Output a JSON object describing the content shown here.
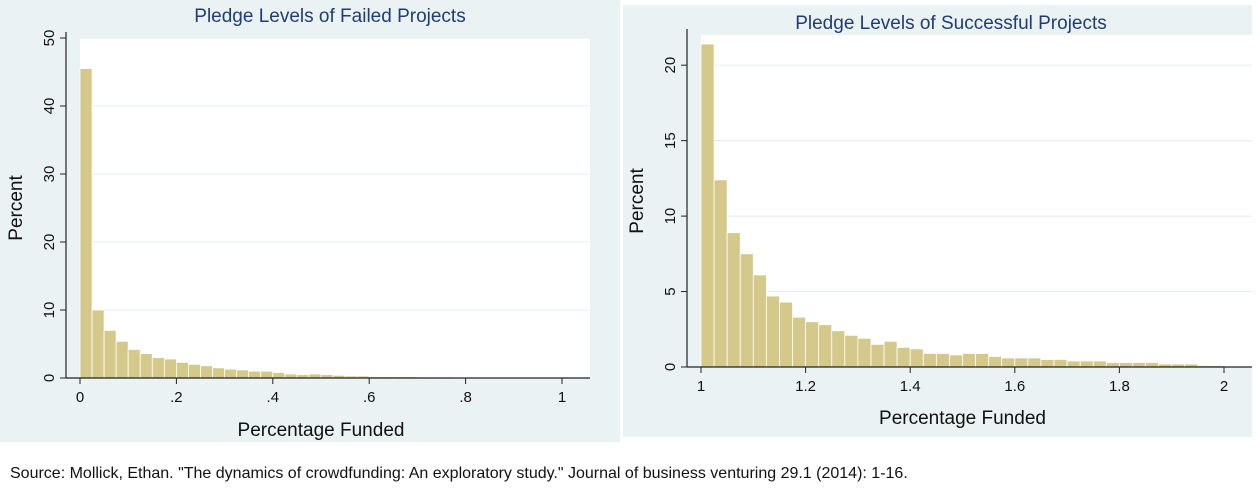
{
  "chart_data": [
    {
      "type": "bar",
      "title": "Pledge Levels of Failed Projects",
      "xlabel": "Percentage Funded",
      "ylabel": "Percent",
      "xlim": [
        0,
        1
      ],
      "ylim": [
        0,
        50
      ],
      "x_ticks": [
        0,
        0.2,
        0.4,
        0.6,
        0.8,
        1
      ],
      "x_tick_labels": [
        "0",
        ".2",
        ".4",
        ".6",
        ".8",
        "1"
      ],
      "y_ticks": [
        0,
        10,
        20,
        30,
        40,
        50
      ],
      "y_tick_labels": [
        "0",
        "10",
        "20",
        "30",
        "40",
        "50"
      ],
      "grid": true,
      "bar_color": "#d4c98a",
      "bin_width": 0.025,
      "bin_starts": [
        0,
        0.025,
        0.05,
        0.075,
        0.1,
        0.125,
        0.15,
        0.175,
        0.2,
        0.225,
        0.25,
        0.275,
        0.3,
        0.325,
        0.35,
        0.375,
        0.4,
        0.425,
        0.45,
        0.475,
        0.5,
        0.525,
        0.55,
        0.575,
        0.6,
        0.625,
        0.65,
        0.675,
        0.7,
        0.725,
        0.75,
        0.775,
        0.8,
        0.825,
        0.85,
        0.875,
        0.9,
        0.925,
        0.95,
        0.975
      ],
      "values": [
        45.5,
        10.0,
        7.0,
        5.4,
        4.2,
        3.6,
        3.0,
        2.8,
        2.3,
        2.0,
        1.8,
        1.5,
        1.3,
        1.2,
        1.0,
        1.0,
        0.8,
        0.6,
        0.5,
        0.6,
        0.5,
        0.4,
        0.3,
        0.3,
        0.2,
        0.2,
        0.2,
        0.2,
        0.15,
        0.15,
        0.15,
        0.1,
        0.1,
        0.05,
        0.05,
        0.05,
        0.05,
        0.05,
        0.05,
        0.05
      ]
    },
    {
      "type": "bar",
      "title": "Pledge Levels of Successful Projects",
      "xlabel": "Percentage Funded",
      "ylabel": "Percent",
      "xlim": [
        1,
        2
      ],
      "ylim": [
        0,
        22
      ],
      "x_ticks": [
        1,
        1.2,
        1.4,
        1.6,
        1.8,
        2
      ],
      "x_tick_labels": [
        "1",
        "1.2",
        "1.4",
        "1.6",
        "1.8",
        "2"
      ],
      "y_ticks": [
        0,
        5,
        10,
        15,
        20
      ],
      "y_tick_labels": [
        "0",
        "5",
        "10",
        "15",
        "20"
      ],
      "grid": true,
      "bar_color": "#d4c98a",
      "bin_width": 0.025,
      "bin_starts": [
        1,
        1.025,
        1.05,
        1.075,
        1.1,
        1.125,
        1.15,
        1.175,
        1.2,
        1.225,
        1.25,
        1.275,
        1.3,
        1.325,
        1.35,
        1.375,
        1.4,
        1.425,
        1.45,
        1.475,
        1.5,
        1.525,
        1.55,
        1.575,
        1.6,
        1.625,
        1.65,
        1.675,
        1.7,
        1.725,
        1.75,
        1.775,
        1.8,
        1.825,
        1.85,
        1.875,
        1.9,
        1.925,
        1.95,
        1.975
      ],
      "values": [
        21.4,
        12.4,
        8.9,
        7.5,
        6.1,
        4.7,
        4.3,
        3.3,
        3.0,
        2.8,
        2.4,
        2.1,
        1.9,
        1.5,
        1.7,
        1.3,
        1.2,
        0.9,
        0.9,
        0.8,
        0.9,
        0.9,
        0.7,
        0.6,
        0.6,
        0.6,
        0.5,
        0.5,
        0.4,
        0.4,
        0.4,
        0.3,
        0.3,
        0.3,
        0.3,
        0.2,
        0.2,
        0.2,
        0.1,
        0.1
      ]
    }
  ],
  "source_text": "Source: Mollick, Ethan. \"The dynamics of crowdfunding: An exploratory study.\" Journal of business venturing 29.1 (2014): 1-16."
}
